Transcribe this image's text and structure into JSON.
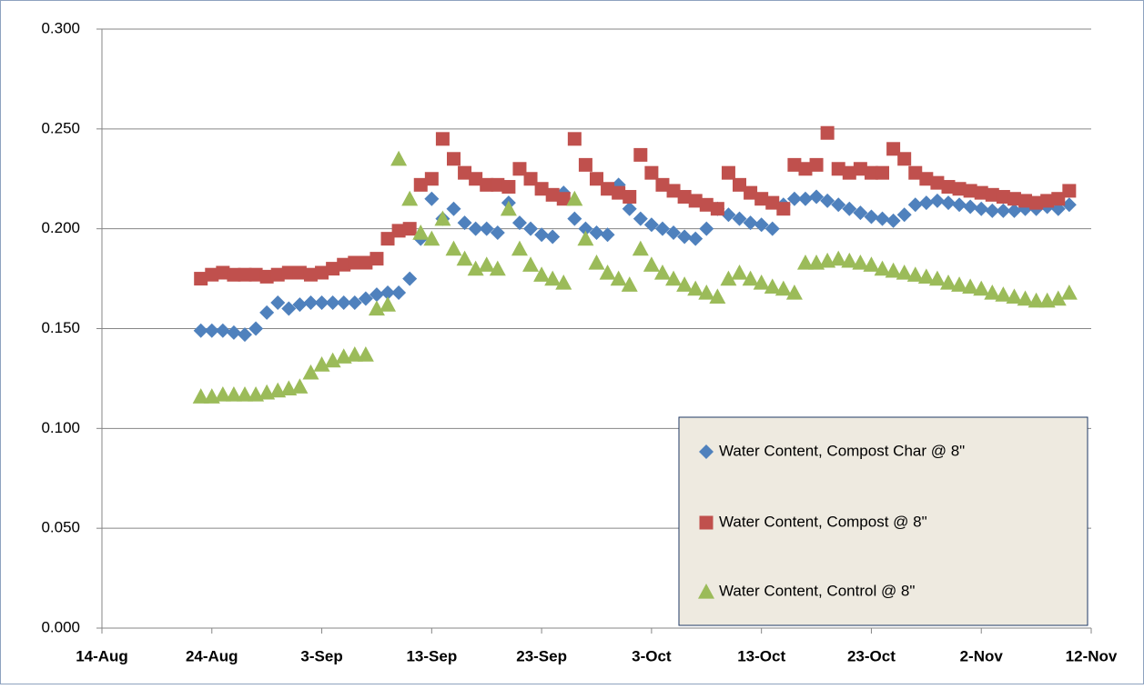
{
  "chart_data": {
    "type": "scatter",
    "x": [
      9,
      10,
      11,
      12,
      13,
      14,
      15,
      16,
      17,
      18,
      19,
      20,
      21,
      22,
      23,
      24,
      25,
      26,
      27,
      28,
      29,
      30,
      31,
      32,
      33,
      34,
      35,
      36,
      37,
      38,
      39,
      40,
      41,
      42,
      43,
      44,
      45,
      46,
      47,
      48,
      49,
      50,
      51,
      52,
      53,
      54,
      55,
      56,
      57,
      58,
      59,
      60,
      61,
      62,
      63,
      64,
      65,
      66,
      67,
      68,
      69,
      70,
      71,
      72,
      73,
      74,
      75,
      76,
      77,
      78,
      79,
      80,
      81,
      82,
      83,
      84,
      85,
      86,
      87,
      88
    ],
    "series": [
      {
        "name": "Water Content, Compost Char @ 8\"",
        "color": "#4f81bd",
        "marker": "diamond",
        "values": [
          0.149,
          0.149,
          0.149,
          0.148,
          0.147,
          0.15,
          0.158,
          0.163,
          0.16,
          0.162,
          0.163,
          0.163,
          0.163,
          0.163,
          0.163,
          0.165,
          0.167,
          0.168,
          0.168,
          0.175,
          0.195,
          0.215,
          0.205,
          0.21,
          0.203,
          0.2,
          0.2,
          0.198,
          0.213,
          0.203,
          0.2,
          0.197,
          0.196,
          0.218,
          0.205,
          0.2,
          0.198,
          0.197,
          0.222,
          0.21,
          0.205,
          0.202,
          0.2,
          0.198,
          0.196,
          0.195,
          0.2,
          0.21,
          0.207,
          0.205,
          0.203,
          0.202,
          0.2,
          0.212,
          0.215,
          0.215,
          0.216,
          0.214,
          0.212,
          0.21,
          0.208,
          0.206,
          0.205,
          0.204,
          0.207,
          0.212,
          0.213,
          0.214,
          0.213,
          0.212,
          0.211,
          0.21,
          0.209,
          0.209,
          0.209,
          0.21,
          0.21,
          0.211,
          0.21,
          0.212
        ]
      },
      {
        "name": "Water Content, Compost @ 8\"",
        "color": "#c0504d",
        "marker": "square",
        "values": [
          0.175,
          0.177,
          0.178,
          0.177,
          0.177,
          0.177,
          0.176,
          0.177,
          0.178,
          0.178,
          0.177,
          0.178,
          0.18,
          0.182,
          0.183,
          0.183,
          0.185,
          0.195,
          0.199,
          0.2,
          0.222,
          0.225,
          0.245,
          0.235,
          0.228,
          0.225,
          0.222,
          0.222,
          0.221,
          0.23,
          0.225,
          0.22,
          0.217,
          0.215,
          0.245,
          0.232,
          0.225,
          0.22,
          0.218,
          0.216,
          0.237,
          0.228,
          0.222,
          0.219,
          0.216,
          0.214,
          0.212,
          0.21,
          0.228,
          0.222,
          0.218,
          0.215,
          0.213,
          0.21,
          0.232,
          0.23,
          0.232,
          0.248,
          0.23,
          0.228,
          0.23,
          0.228,
          0.228,
          0.24,
          0.235,
          0.228,
          0.225,
          0.223,
          0.221,
          0.22,
          0.219,
          0.218,
          0.217,
          0.216,
          0.215,
          0.214,
          0.213,
          0.214,
          0.215,
          0.219
        ]
      },
      {
        "name": "Water Content,  Control @ 8\"",
        "color": "#9bbb59",
        "marker": "triangle",
        "values": [
          0.116,
          0.116,
          0.117,
          0.117,
          0.117,
          0.117,
          0.118,
          0.119,
          0.12,
          0.121,
          0.128,
          0.132,
          0.134,
          0.136,
          0.137,
          0.137,
          0.16,
          0.162,
          0.235,
          0.215,
          0.198,
          0.195,
          0.205,
          0.19,
          0.185,
          0.18,
          0.182,
          0.18,
          0.21,
          0.19,
          0.182,
          0.177,
          0.175,
          0.173,
          0.215,
          0.195,
          0.183,
          0.178,
          0.175,
          0.172,
          0.19,
          0.182,
          0.178,
          0.175,
          0.172,
          0.17,
          0.168,
          0.166,
          0.175,
          0.178,
          0.175,
          0.173,
          0.171,
          0.17,
          0.168,
          0.183,
          0.183,
          0.184,
          0.185,
          0.184,
          0.183,
          0.182,
          0.18,
          0.179,
          0.178,
          0.177,
          0.176,
          0.175,
          0.173,
          0.172,
          0.171,
          0.17,
          0.168,
          0.167,
          0.166,
          0.165,
          0.164,
          0.164,
          0.165,
          0.168
        ]
      }
    ],
    "xlim": [
      0,
      90
    ],
    "xticks": [
      {
        "value": 0,
        "label": "14-Aug"
      },
      {
        "value": 10,
        "label": "24-Aug"
      },
      {
        "value": 20,
        "label": "3-Sep"
      },
      {
        "value": 30,
        "label": "13-Sep"
      },
      {
        "value": 40,
        "label": "23-Sep"
      },
      {
        "value": 50,
        "label": "3-Oct"
      },
      {
        "value": 60,
        "label": "13-Oct"
      },
      {
        "value": 70,
        "label": "23-Oct"
      },
      {
        "value": 80,
        "label": "2-Nov"
      },
      {
        "value": 90,
        "label": "12-Nov"
      }
    ],
    "ylim": [
      0,
      0.3
    ],
    "yticks": [
      {
        "value": 0,
        "label": "0.000"
      },
      {
        "value": 0.05,
        "label": "0.050"
      },
      {
        "value": 0.1,
        "label": "0.100"
      },
      {
        "value": 0.15,
        "label": "0.150"
      },
      {
        "value": 0.2,
        "label": "0.200"
      },
      {
        "value": 0.25,
        "label": "0.250"
      },
      {
        "value": 0.3,
        "label": "0.300"
      }
    ],
    "grid": true,
    "legend": "lower right"
  }
}
